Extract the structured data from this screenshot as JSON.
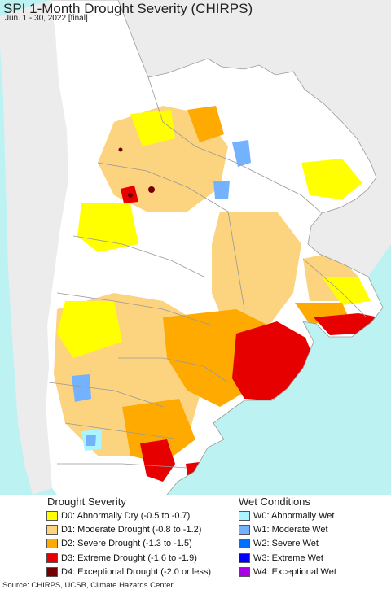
{
  "title": "SPI 1-Month Drought Severity (CHIRPS)",
  "subtitle": "Jun. 1 - 30, 2022 [final]",
  "drought_legend": {
    "heading": "Drought Severity",
    "items": [
      {
        "label": "D0: Abnormally Dry (-0.5 to -0.7)",
        "color": "#ffff00"
      },
      {
        "label": "D1: Moderate Drought (-0.8 to -1.2)",
        "color": "#fcd37f"
      },
      {
        "label": "D2: Severe Drought (-1.3 to -1.5)",
        "color": "#ffaa00"
      },
      {
        "label": "D3: Extreme Drought (-1.6 to -1.9)",
        "color": "#e60000"
      },
      {
        "label": "D4: Exceptional Drought (-2.0 or less)",
        "color": "#730000"
      }
    ]
  },
  "wet_legend": {
    "heading": "Wet Conditions",
    "items": [
      {
        "label": "W0: Abnormally Wet",
        "color": "#aaf5ff"
      },
      {
        "label": "W1: Moderate Wet",
        "color": "#73b2ff"
      },
      {
        "label": "W2: Severe Wet",
        "color": "#0070ff"
      },
      {
        "label": "W3: Extreme Wet",
        "color": "#0000ff"
      },
      {
        "label": "W4: Exceptional Wet",
        "color": "#a900e6"
      }
    ]
  },
  "map_colors": {
    "ocean": "#bdf2f2",
    "outside_region": "#ececec",
    "no_drought": "#ffffff",
    "boundary": "#999999"
  },
  "source": "Source: CHIRPS, UCSB, Climate Hazards Center"
}
